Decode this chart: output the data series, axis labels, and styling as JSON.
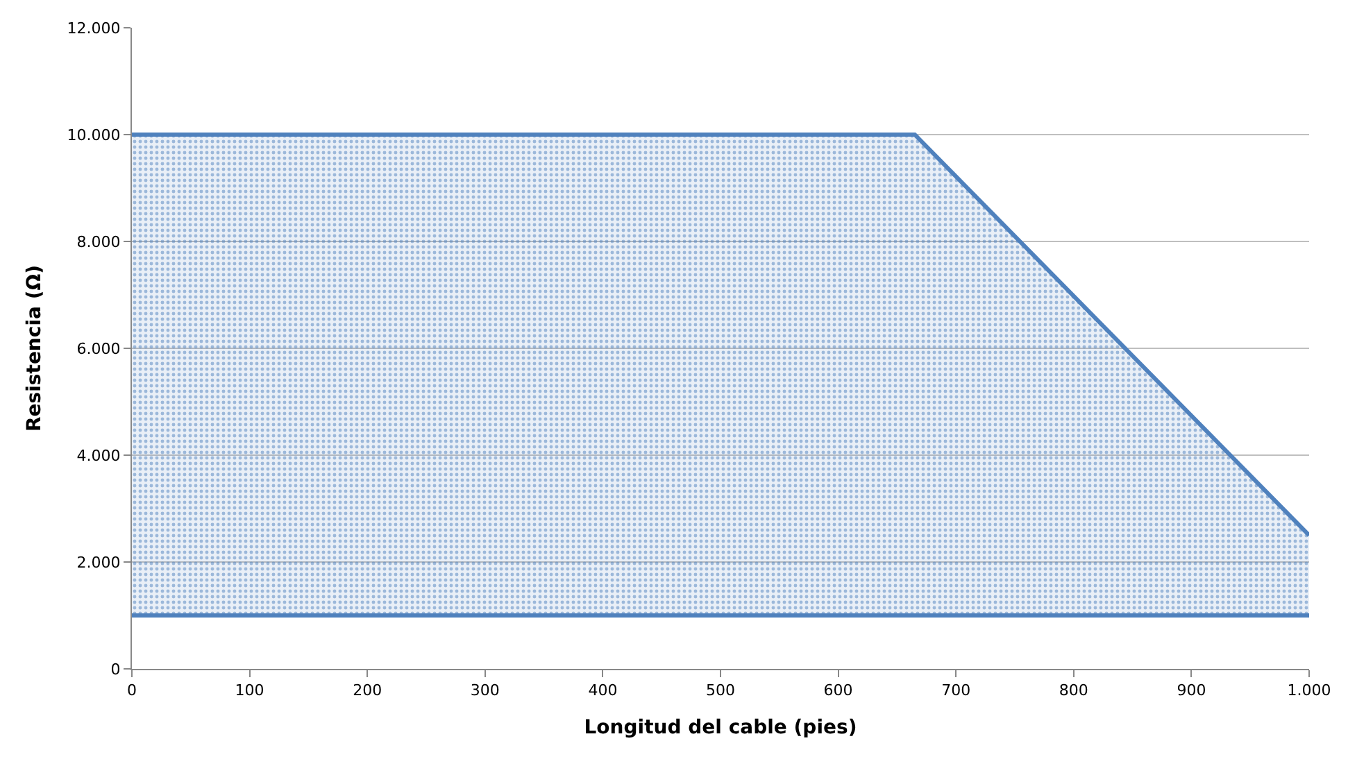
{
  "chart_data": {
    "type": "area",
    "xlabel": "Longitud del cable (pies)",
    "ylabel": "Resistencia (Ω)",
    "series": [
      {
        "type": "line",
        "color": "#4f81bd",
        "x": [
          0,
          1000
        ],
        "values": [
          1000,
          1000
        ]
      },
      {
        "color": "#4f81bd",
        "x": [
          0,
          665,
          1000
        ],
        "values": [
          10000,
          10000,
          2500
        ]
      }
    ],
    "xlim": [
      0,
      1000
    ],
    "ylim": [
      0,
      12000
    ],
    "xticks": [
      0,
      100,
      200,
      300,
      400,
      500,
      600,
      700,
      800,
      900,
      {
        "value": 1000,
        "label": "1.000"
      }
    ],
    "yticks": [
      0,
      {
        "value": 2000,
        "label": "2.000"
      },
      {
        "value": 4000,
        "label": "4.000"
      },
      {
        "value": 6000,
        "label": "6.000"
      },
      {
        "value": 8000,
        "label": "8.000"
      },
      {
        "value": 10000,
        "label": "10.000"
      },
      {
        "value": 12000,
        "label": "12.000"
      }
    ],
    "grid": "y",
    "marker": "none",
    "line_style": "solid"
  }
}
